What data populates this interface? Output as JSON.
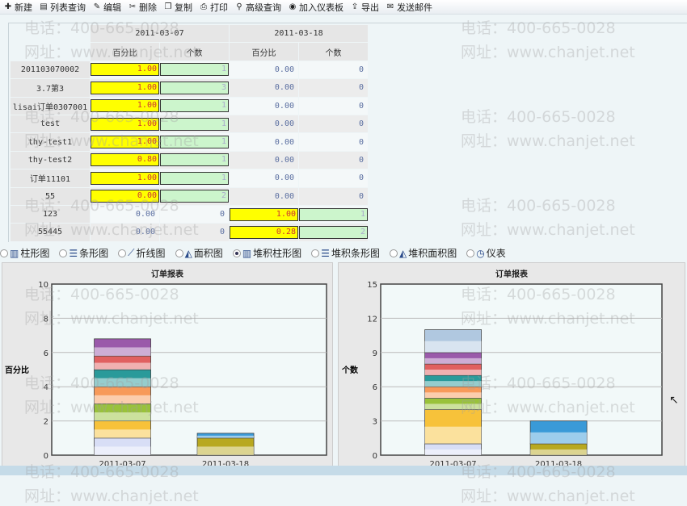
{
  "toolbar": [
    {
      "label": "新建",
      "icon": "new-icon"
    },
    {
      "label": "列表查询",
      "icon": "list-query-icon"
    },
    {
      "label": "编辑",
      "icon": "edit-icon"
    },
    {
      "label": "删除",
      "icon": "delete-icon"
    },
    {
      "label": "复制",
      "icon": "copy-icon"
    },
    {
      "label": "打印",
      "icon": "print-icon"
    },
    {
      "label": "高级查询",
      "icon": "search-icon"
    },
    {
      "label": "加入仪表板",
      "icon": "dashboard-icon"
    },
    {
      "label": "导出",
      "icon": "export-icon"
    },
    {
      "label": "发送邮件",
      "icon": "mail-icon"
    }
  ],
  "table": {
    "dates": [
      "2011-03-07",
      "2011-03-18"
    ],
    "sub": [
      "百分比",
      "个数",
      "百分比",
      "个数"
    ],
    "rows": [
      {
        "name": "201103070002",
        "v": [
          "1.00",
          "1",
          "0.00",
          "0"
        ]
      },
      {
        "name": "3.7第3",
        "v": [
          "1.00",
          "3",
          "0.00",
          "0"
        ]
      },
      {
        "name": "lisai订单0307001",
        "v": [
          "1.00",
          "1",
          "0.00",
          "0"
        ]
      },
      {
        "name": "test",
        "v": [
          "1.00",
          "1",
          "0.00",
          "0"
        ]
      },
      {
        "name": "thy-test1",
        "v": [
          "1.00",
          "1",
          "0.00",
          "0"
        ]
      },
      {
        "name": "thy-test2",
        "v": [
          "0.80",
          "1",
          "0.00",
          "0"
        ]
      },
      {
        "name": "订单11101",
        "v": [
          "1.00",
          "1",
          "0.00",
          "0"
        ]
      },
      {
        "name": "55",
        "v": [
          "0.00",
          "2",
          "0.00",
          "0"
        ]
      },
      {
        "name": "123",
        "v": [
          "0.00",
          "0",
          "1.00",
          "1"
        ]
      },
      {
        "name": "55445",
        "v": [
          "0.00",
          "0",
          "0.28",
          "2"
        ]
      }
    ]
  },
  "chart_types": [
    {
      "label": "柱形图",
      "selected": false
    },
    {
      "label": "条形图",
      "selected": false
    },
    {
      "label": "折线图",
      "selected": false
    },
    {
      "label": "面积图",
      "selected": false
    },
    {
      "label": "堆积柱形图",
      "selected": true
    },
    {
      "label": "堆积条形图",
      "selected": false
    },
    {
      "label": "堆积面积图",
      "selected": false
    },
    {
      "label": "仪表",
      "selected": false
    }
  ],
  "watermark": {
    "phone": "电话：400-665-0028",
    "site": "网址：www.chanjet.net"
  },
  "chart_data": [
    {
      "type": "bar",
      "stacked": true,
      "title": "订单报表",
      "ylabel": "百分比",
      "categories": [
        "2011-03-07",
        "2011-03-18"
      ],
      "ylim": [
        0,
        10
      ],
      "yticks": [
        0,
        2,
        4,
        6,
        8,
        10
      ],
      "grid": true,
      "series": [
        {
          "values": [
            1,
            0
          ]
        },
        {
          "values": [
            1,
            0
          ]
        },
        {
          "values": [
            1,
            0
          ]
        },
        {
          "values": [
            1,
            0
          ]
        },
        {
          "values": [
            1,
            0
          ]
        },
        {
          "values": [
            0.8,
            0
          ]
        },
        {
          "values": [
            1,
            0
          ]
        },
        {
          "values": [
            0,
            0
          ]
        },
        {
          "values": [
            0,
            1
          ]
        },
        {
          "values": [
            0,
            0.28
          ]
        }
      ]
    },
    {
      "type": "bar",
      "stacked": true,
      "title": "订单报表",
      "ylabel": "个数",
      "categories": [
        "2011-03-07",
        "2011-03-18"
      ],
      "ylim": [
        0,
        15
      ],
      "yticks": [
        0,
        3,
        6,
        9,
        12,
        15
      ],
      "grid": true,
      "series": [
        {
          "values": [
            1,
            0
          ]
        },
        {
          "values": [
            3,
            0
          ]
        },
        {
          "values": [
            1,
            0
          ]
        },
        {
          "values": [
            1,
            0
          ]
        },
        {
          "values": [
            1,
            0
          ]
        },
        {
          "values": [
            1,
            0
          ]
        },
        {
          "values": [
            1,
            0
          ]
        },
        {
          "values": [
            2,
            0
          ]
        },
        {
          "values": [
            0,
            1
          ]
        },
        {
          "values": [
            0,
            2
          ]
        }
      ]
    }
  ],
  "colors": [
    "#d8def6",
    "#f7c23a",
    "#99c23a",
    "#f79a5a",
    "#2a9a9a",
    "#e06060",
    "#9a5aaa",
    "#b0c8e0",
    "#b8a820",
    "#3a9ad8"
  ]
}
